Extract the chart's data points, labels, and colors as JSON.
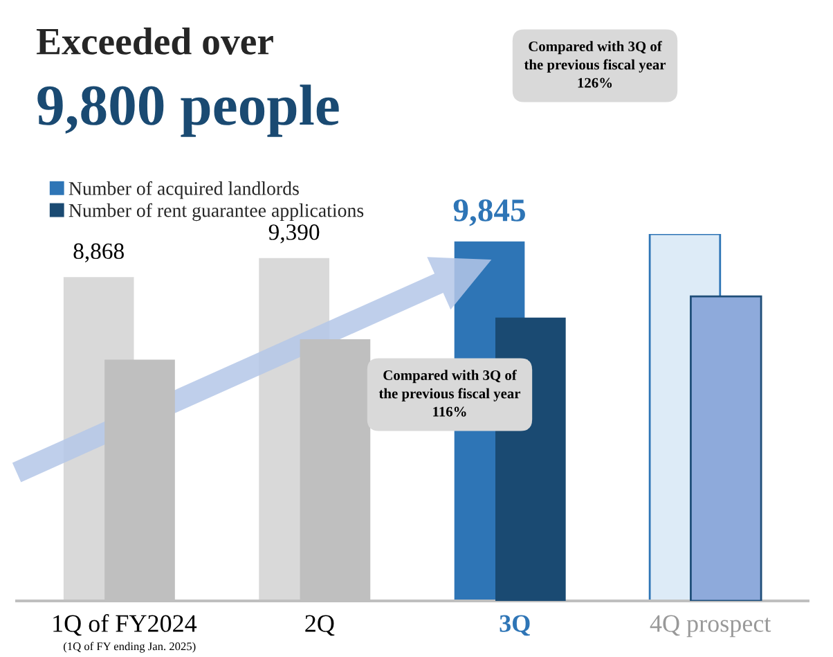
{
  "chart_data": {
    "type": "bar",
    "title": "Exceeded over",
    "subtitle": "9,800 people",
    "legend": "top left",
    "grid": false,
    "categories": [
      "1Q of FY2024",
      "2Q",
      "3Q",
      "4Q prospect"
    ],
    "series": [
      {
        "name": "Number of acquired landlords",
        "color": "#2e75b6",
        "colors": [
          "#d9d9d9",
          "#d9d9d9",
          "#2e75b6",
          "#ddebf7"
        ],
        "values": [
          8868,
          9390,
          9845,
          10050
        ],
        "value_labels": [
          "8,868",
          "9,390",
          "9,845",
          null
        ]
      },
      {
        "name": "Number of rent guarantee applications",
        "color": "#1a4a72",
        "colors": [
          "#bfbfbf",
          "#bfbfbf",
          "#1a4a72",
          "#8eaadb"
        ],
        "values": [
          6610,
          7170,
          7760,
          8340
        ]
      }
    ],
    "annotations": [
      "(1Q of FY ending Jan. 2025)",
      "Compared with 3Q of\nthe previous fiscal year\n126%",
      "Compared with 3Q of\nthe previous fiscal year\n116%"
    ]
  }
}
